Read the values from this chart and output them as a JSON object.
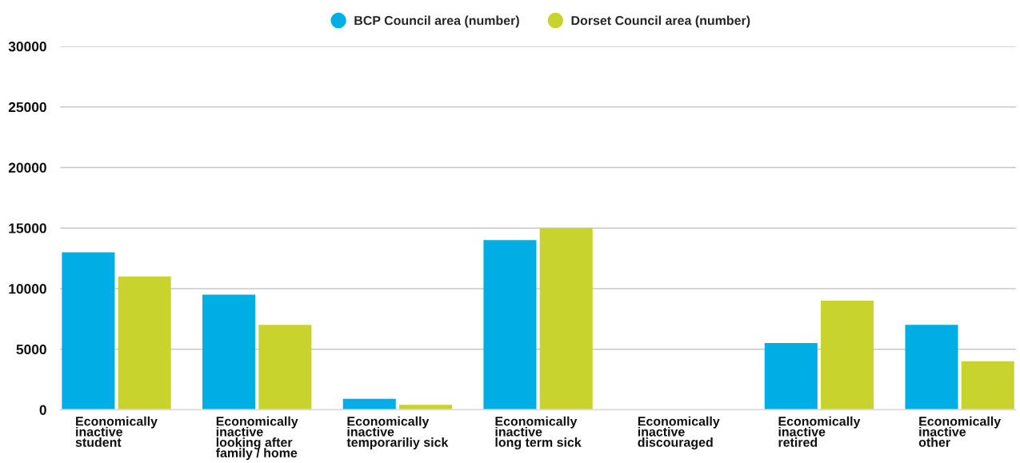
{
  "chart_data": {
    "type": "bar",
    "categories": [
      "Economically\ninactive\nstudent",
      "Economically\ninactive\nlooking after\nfamily / home",
      "Economically\ninactive\ntemporariliy sick",
      "Economically\ninactive\nlong term sick",
      "Economically\ninactive\ndiscouraged",
      "Economically\ninactive\nretired",
      "Economically\ninactive\nother"
    ],
    "series": [
      {
        "name": "BCP Council area (number)",
        "color": "#00aee6",
        "values": [
          13000,
          9500,
          900,
          14000,
          null,
          5500,
          7000
        ]
      },
      {
        "name": "Dorset Council area (number)",
        "color": "#c8d42d",
        "values": [
          11000,
          7000,
          400,
          15000,
          null,
          9000,
          4000
        ]
      }
    ],
    "ylim": [
      0,
      30000
    ],
    "yticks": [
      0,
      5000,
      10000,
      15000,
      20000,
      25000,
      30000
    ],
    "grid": "y",
    "legend": "top"
  }
}
